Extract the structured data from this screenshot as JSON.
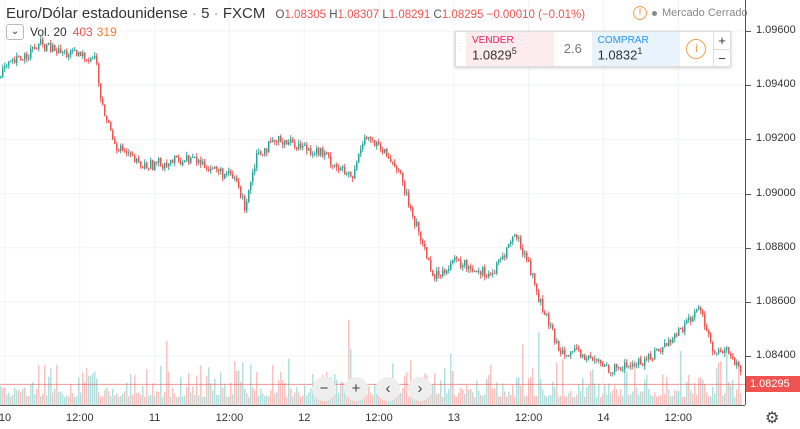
{
  "header": {
    "symbol": "Euro/Dólar estadounidense",
    "sep1": "·",
    "interval": "5",
    "sep2": "·",
    "exchange": "FXCM",
    "o_label": "O",
    "o": "1.08305",
    "h_label": "H",
    "h": "1.08307",
    "l_label": "L",
    "l": "1.08291",
    "c_label": "C",
    "c": "1.08295",
    "change": "−0.00010 (−0.01%)"
  },
  "volume": {
    "label": "Vol. 20",
    "v1": "403",
    "v2": "319"
  },
  "market_status": "Mercado Cerrado",
  "trade": {
    "sell_label": "VENDER",
    "sell_price": "1.0829",
    "sell_sup": "5",
    "spread": "2.6",
    "buy_label": "COMPRAR",
    "buy_price": "1.0832",
    "buy_sup": "1",
    "plus": "+",
    "minus": "−"
  },
  "price_axis": [
    "1.09600",
    "1.09400",
    "1.09200",
    "1.09000",
    "1.08800",
    "1.08600",
    "1.08400"
  ],
  "last_price": "1.08295",
  "time_axis": [
    {
      "label": "10",
      "h": 0
    },
    {
      "label": "12:00",
      "h": 12
    },
    {
      "label": "11",
      "h": 24
    },
    {
      "label": "12:00",
      "h": 36
    },
    {
      "label": "12",
      "h": 48
    },
    {
      "label": "12:00",
      "h": 60
    },
    {
      "label": "13",
      "h": 72
    },
    {
      "label": "12:00",
      "h": 84
    },
    {
      "label": "14",
      "h": 96
    },
    {
      "label": "12:00",
      "h": 108
    }
  ],
  "nav": {
    "zoom_out": "−",
    "zoom_in": "+",
    "left": "‹",
    "right": "›"
  },
  "colors": {
    "up": "#26a69a",
    "down": "#ef5350"
  },
  "chart_data": {
    "type": "line",
    "ylim": [
      1.08219,
      1.09715
    ],
    "xlim": [
      -0.8,
      118.7
    ],
    "points": [
      [
        -0.8,
        1.0945
      ],
      [
        5.6,
        1.0955
      ],
      [
        8.9,
        1.0952
      ],
      [
        14.5,
        1.095
      ],
      [
        15.3,
        1.0933
      ],
      [
        17.7,
        1.0918
      ],
      [
        21.7,
        1.091
      ],
      [
        29.8,
        1.0913
      ],
      [
        37.0,
        1.0905
      ],
      [
        38.3,
        1.0895
      ],
      [
        40.3,
        1.0915
      ],
      [
        44.3,
        1.092
      ],
      [
        50.7,
        1.0915
      ],
      [
        55.6,
        1.0905
      ],
      [
        57.5,
        1.0922
      ],
      [
        62.8,
        1.091
      ],
      [
        64.4,
        1.0898
      ],
      [
        66.8,
        1.0882
      ],
      [
        68.8,
        1.0869
      ],
      [
        71.7,
        1.0875
      ],
      [
        78.1,
        1.087
      ],
      [
        81.7,
        1.0885
      ],
      [
        83.8,
        1.0875
      ],
      [
        85.4,
        1.0862
      ],
      [
        88.6,
        1.0843
      ],
      [
        92.6,
        1.084
      ],
      [
        97.4,
        1.0835
      ],
      [
        102.3,
        1.0838
      ],
      [
        106.3,
        1.0845
      ],
      [
        111.5,
        1.0858
      ],
      [
        113.6,
        1.084
      ],
      [
        116.0,
        1.0842
      ],
      [
        118.7,
        1.08295
      ]
    ]
  }
}
